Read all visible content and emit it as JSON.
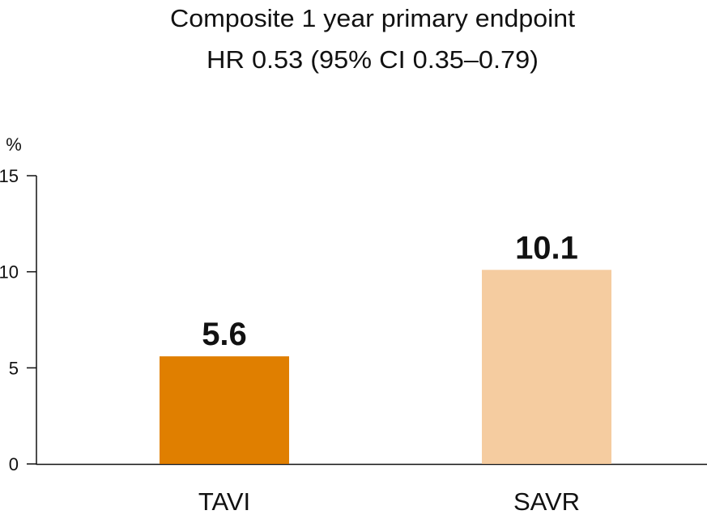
{
  "chart_data": {
    "type": "bar",
    "title": "Composite 1 year primary endpoint",
    "subtitle": "HR 0.53 (95% CI 0.35–0.79)",
    "ylabel": "%",
    "xlabel": "",
    "ylim": [
      0,
      15
    ],
    "yticks": [
      0,
      5,
      10,
      15
    ],
    "categories": [
      "TAVI",
      "SAVR"
    ],
    "values": [
      5.6,
      10.1
    ],
    "data_labels": [
      "5.6",
      "10.1"
    ],
    "colors": [
      "#E07F00",
      "#F5CCA0"
    ],
    "grid": false,
    "legend": "none"
  }
}
